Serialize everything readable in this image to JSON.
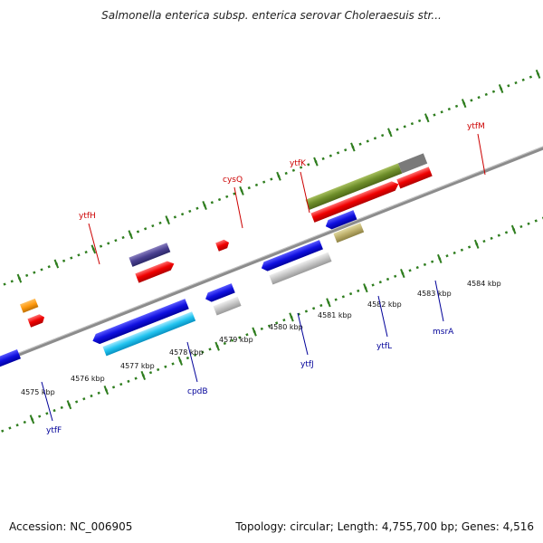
{
  "title": "Salmonella enterica subsp. enterica serovar Choleraesuis str...",
  "footer": {
    "accession": "Accession: NC_006905",
    "info": "Topology: circular; Length: 4,755,700 bp; Genes: 4,516"
  },
  "axis": {
    "unit": "kbp",
    "ticks": [
      "4575 kbp",
      "4576 kbp",
      "4577 kbp",
      "4578 kbp",
      "4579 kbp",
      "4580 kbp",
      "4581 kbp",
      "4582 kbp",
      "4583 kbp",
      "4584 kbp"
    ]
  },
  "colors": {
    "backbone": "#8c8c8c",
    "forward_track_dots": "#2e7d1e",
    "top_label": "#cc0000",
    "bottom_label": "#000099"
  },
  "genes_top": [
    "ytfH",
    "cysQ",
    "ytfK",
    "ytfM"
  ],
  "genes_bottom": [
    "ytfF",
    "cpdB",
    "ytfJ",
    "ytfL",
    "msrA"
  ]
}
